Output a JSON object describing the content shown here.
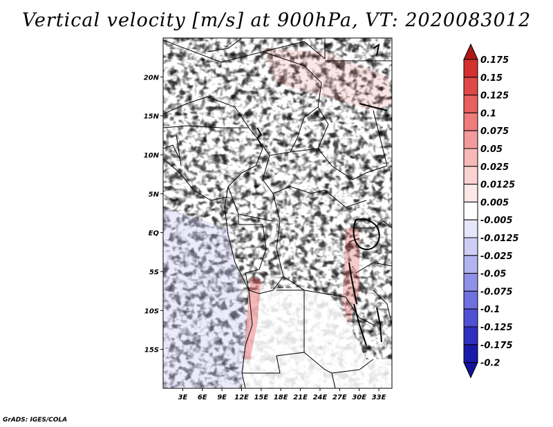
{
  "title": "Vertical velocity [m/s] at 900hPa, VT: 2020083012",
  "credit": "GrADS: IGES/COLA",
  "map": {
    "lon_range": [
      0,
      35
    ],
    "lat_range": [
      -20,
      25
    ],
    "lon_ticks": [
      {
        "value": 3,
        "label": "3E"
      },
      {
        "value": 6,
        "label": "6E"
      },
      {
        "value": 9,
        "label": "9E"
      },
      {
        "value": 12,
        "label": "12E"
      },
      {
        "value": 15,
        "label": "15E"
      },
      {
        "value": 18,
        "label": "18E"
      },
      {
        "value": 21,
        "label": "21E"
      },
      {
        "value": 24,
        "label": "24E"
      },
      {
        "value": 27,
        "label": "27E"
      },
      {
        "value": 30,
        "label": "30E"
      },
      {
        "value": 33,
        "label": "33E"
      }
    ],
    "lat_ticks": [
      {
        "value": 20,
        "label": "20N"
      },
      {
        "value": 15,
        "label": "15N"
      },
      {
        "value": 10,
        "label": "10N"
      },
      {
        "value": 5,
        "label": "5N"
      },
      {
        "value": 0,
        "label": "EQ"
      },
      {
        "value": -5,
        "label": "5S"
      },
      {
        "value": -10,
        "label": "10S"
      },
      {
        "value": -15,
        "label": "15S"
      }
    ]
  },
  "colorbar": {
    "levels": [
      {
        "label": "0.175",
        "color": "#c41e1e"
      },
      {
        "label": "0.15",
        "color": "#d33030"
      },
      {
        "label": "0.125",
        "color": "#e04848"
      },
      {
        "label": "0.1",
        "color": "#e86060"
      },
      {
        "label": "0.075",
        "color": "#ee7c7c"
      },
      {
        "label": "0.05",
        "color": "#f39a9a"
      },
      {
        "label": "0.025",
        "color": "#f7b8b8"
      },
      {
        "label": "0.0125",
        "color": "#fad2d2"
      },
      {
        "label": "0.005",
        "color": "#fde8e8"
      },
      {
        "label": "-0.005",
        "color": "#ffffff"
      },
      {
        "label": "-0.0125",
        "color": "#e6e6fb"
      },
      {
        "label": "-0.025",
        "color": "#cdcdf6"
      },
      {
        "label": "-0.05",
        "color": "#b3b3f0"
      },
      {
        "label": "-0.075",
        "color": "#9090e8"
      },
      {
        "label": "-0.1",
        "color": "#7070de"
      },
      {
        "label": "-0.125",
        "color": "#5050d2"
      },
      {
        "label": "-0.175",
        "color": "#3030c0"
      },
      {
        "label": "-0.2",
        "color": "#1a1aa8"
      }
    ],
    "top_color": "#b01818",
    "bottom_color": "#12129a"
  }
}
